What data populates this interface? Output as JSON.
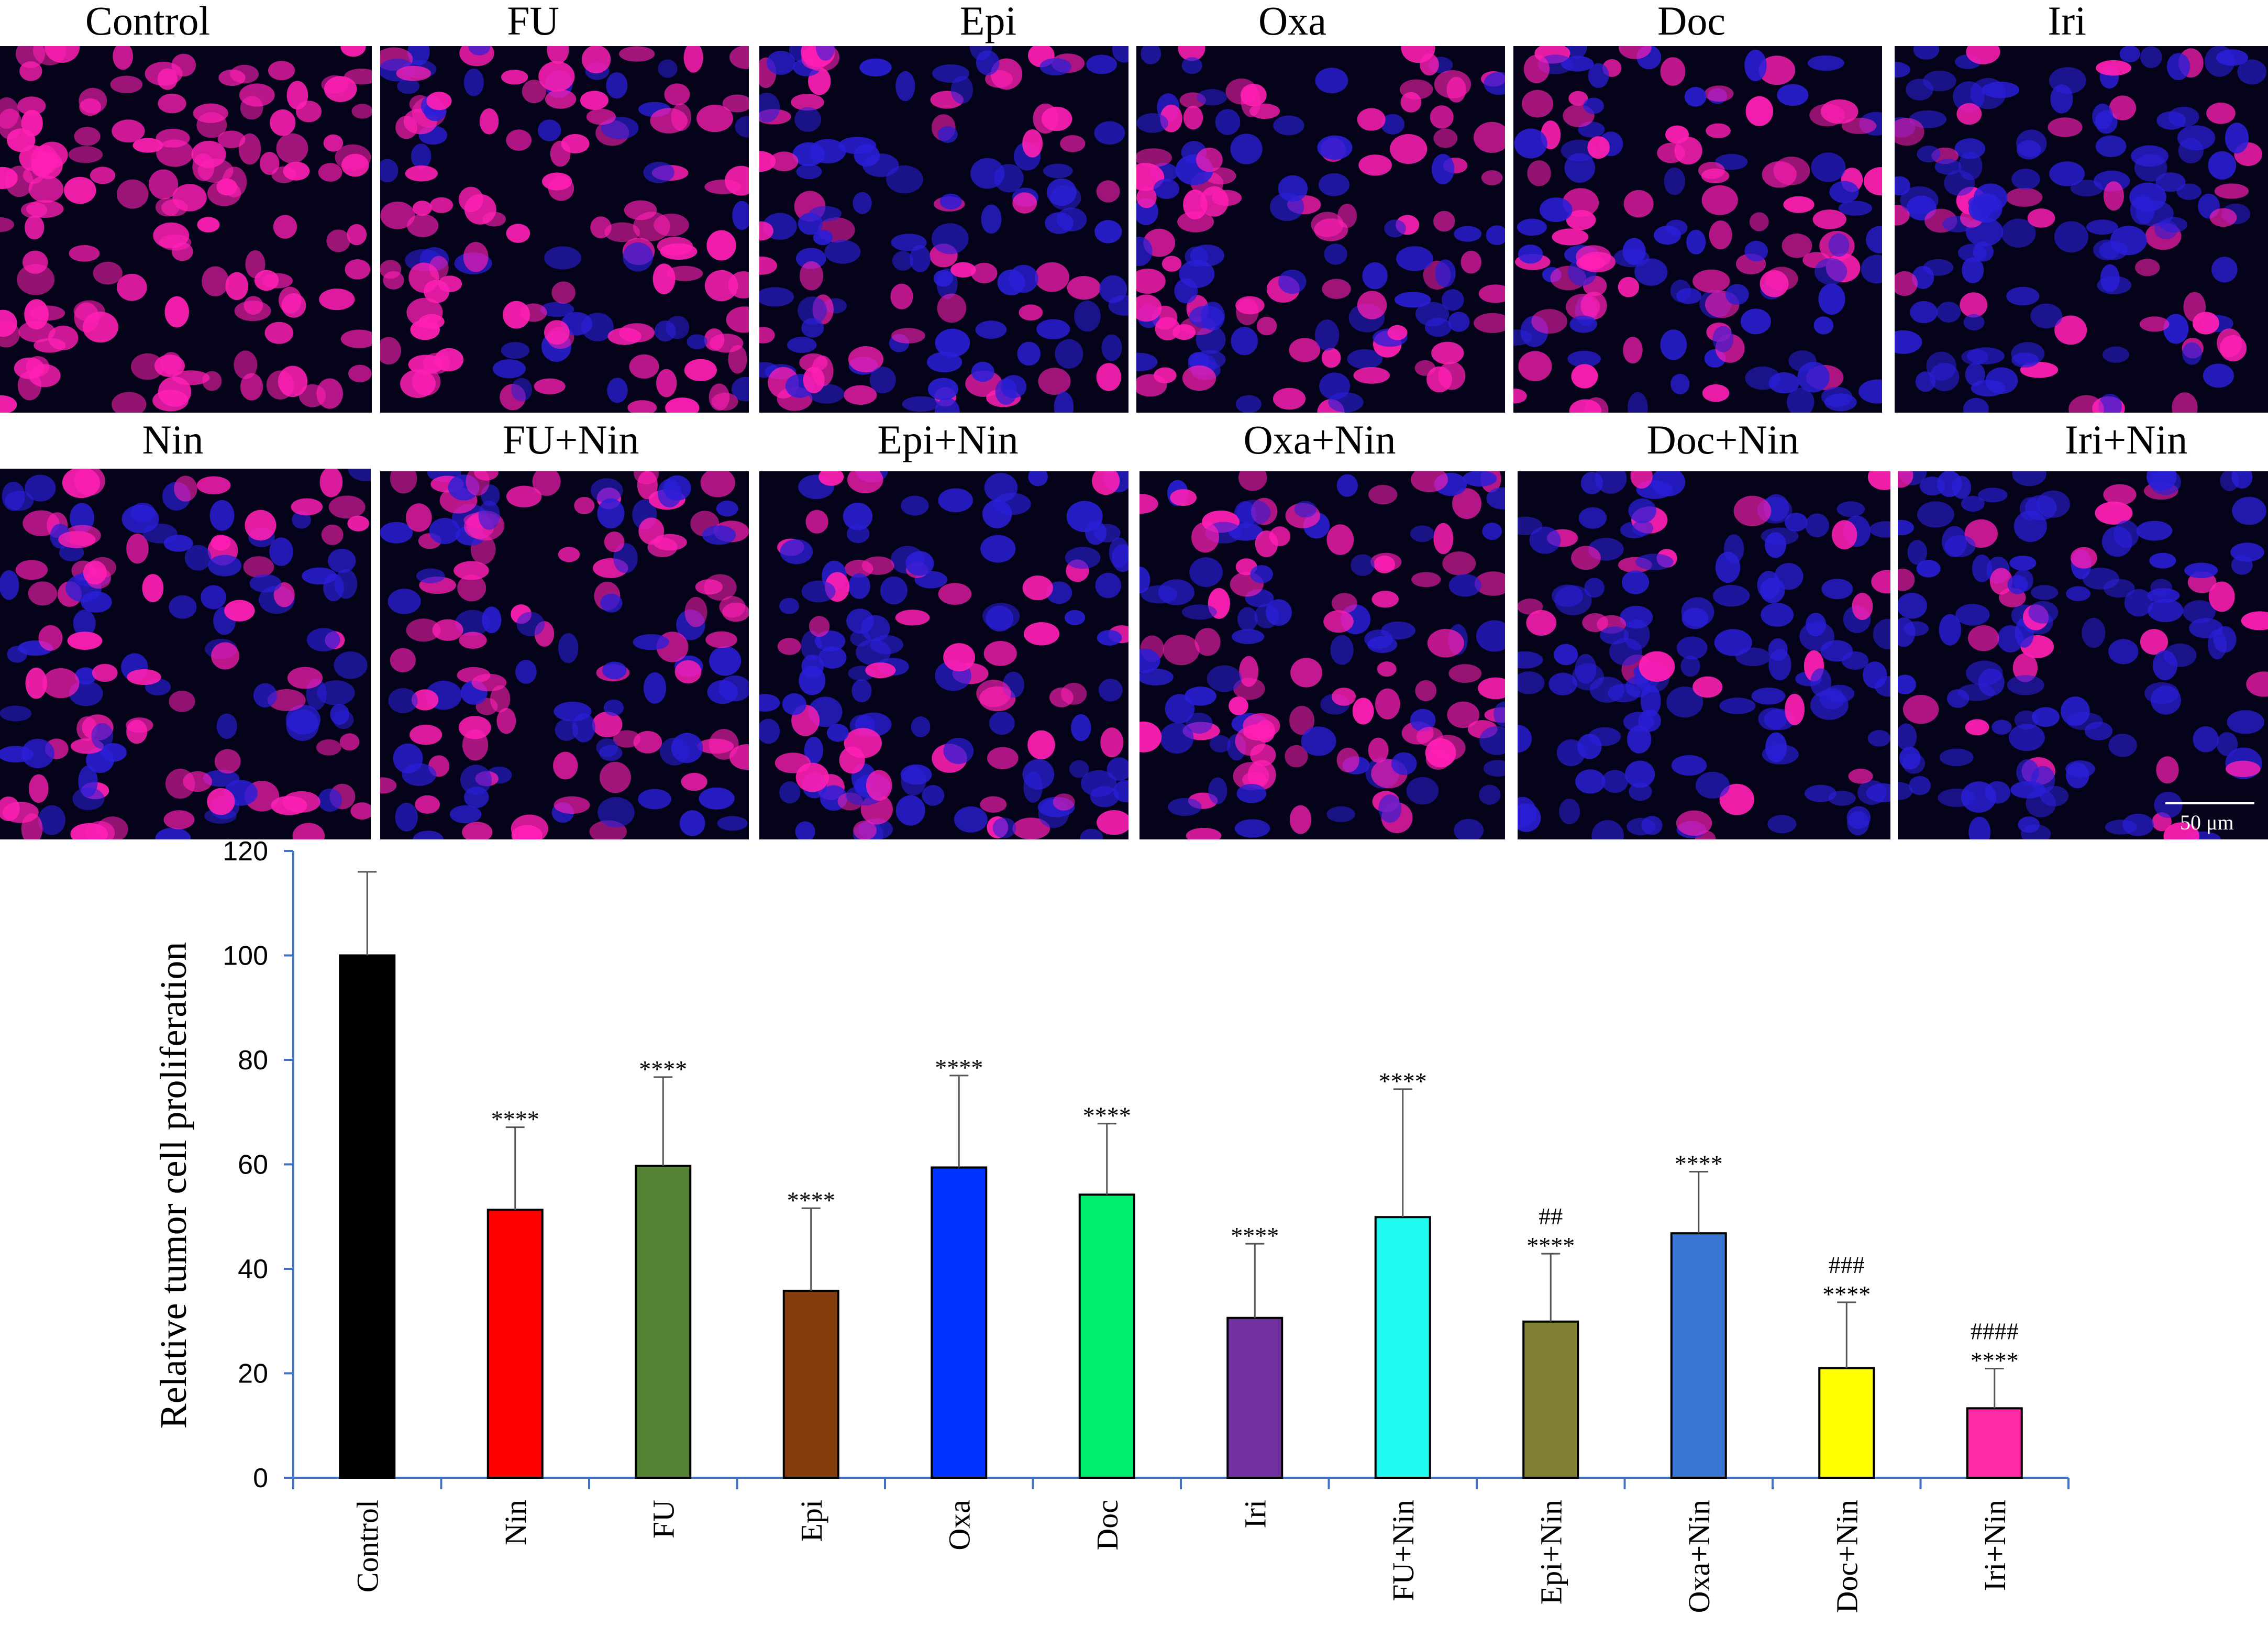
{
  "panels": {
    "row1": [
      {
        "label": "Control",
        "density": 1.0
      },
      {
        "label": "FU",
        "density": 0.75
      },
      {
        "label": "Epi",
        "density": 0.4
      },
      {
        "label": "Oxa",
        "density": 0.6
      },
      {
        "label": "Doc",
        "density": 0.45
      },
      {
        "label": "Iri",
        "density": 0.3
      }
    ],
    "row2": [
      {
        "label": "Nin",
        "density": 0.5
      },
      {
        "label": "FU+Nin",
        "density": 0.55
      },
      {
        "label": "Epi+Nin",
        "density": 0.35
      },
      {
        "label": "Oxa+Nin",
        "density": 0.5
      },
      {
        "label": "Doc+Nin",
        "density": 0.25
      },
      {
        "label": "Iri+Nin",
        "density": 0.15
      }
    ],
    "scale_bar": "50 μm",
    "colors": {
      "nucleus": "#2a1fd8",
      "marker": "#ff1fb4",
      "background": "#05031a"
    }
  },
  "chart_data": {
    "type": "bar",
    "title": "",
    "xlabel": "",
    "ylabel": "Relative tumor cell proliferation",
    "ylim": [
      0,
      120
    ],
    "yticks": [
      0,
      20,
      40,
      60,
      80,
      100,
      120
    ],
    "grid": false,
    "categories": [
      "Control",
      "Nin",
      "FU",
      "Epi",
      "Oxa",
      "Doc",
      "Iri",
      "FU+Nin",
      "Epi+Nin",
      "Oxa+Nin",
      "Doc+Nin",
      "Iri+Nin"
    ],
    "values": [
      100,
      51.3,
      59.7,
      35.8,
      59.4,
      54.2,
      30.6,
      49.9,
      29.9,
      46.8,
      21.0,
      13.3
    ],
    "errors": [
      16,
      15.8,
      17,
      15.8,
      17.6,
      13.6,
      14.2,
      24.5,
      13.0,
      11.8,
      12.6,
      7.6
    ],
    "significance_star": [
      "",
      "****",
      "****",
      "****",
      "****",
      "****",
      "****",
      "****",
      "****",
      "****",
      "****",
      "****"
    ],
    "significance_hash": [
      "",
      "",
      "",
      "",
      "",
      "",
      "",
      "",
      "##",
      "",
      "###",
      "####"
    ],
    "colors": [
      "#000000",
      "#ff0000",
      "#548235",
      "#843c0c",
      "#0033ff",
      "#00ee6e",
      "#7030a0",
      "#1ffbf0",
      "#7f7f35",
      "#3a75d4",
      "#ffff00",
      "#ff2ca5"
    ],
    "axis_color": "#4472c4"
  }
}
